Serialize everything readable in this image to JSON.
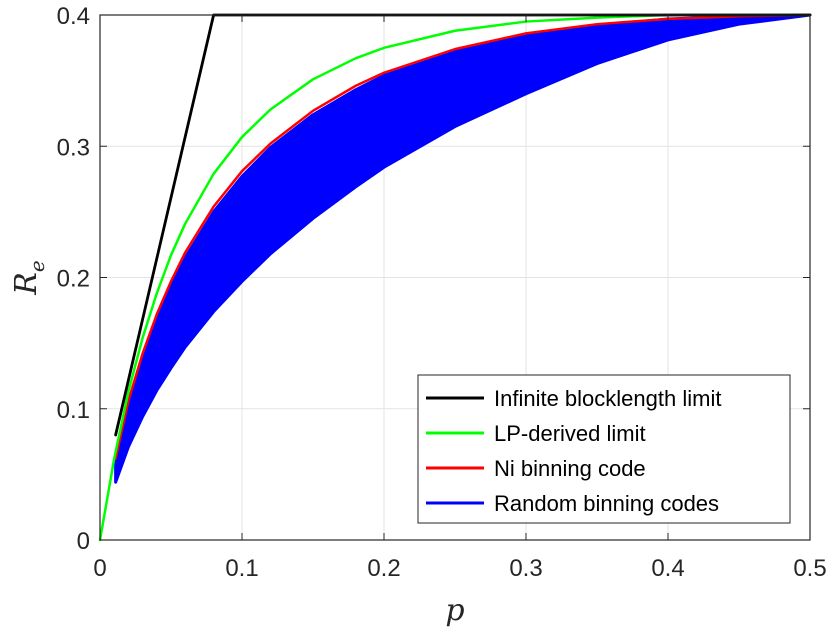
{
  "chart_data": {
    "type": "line",
    "title": "",
    "xlabel": "p",
    "ylabel": {
      "main": "R",
      "sub": "e"
    },
    "xlim": [
      0,
      0.5
    ],
    "ylim": [
      0,
      0.4
    ],
    "x_ticks": [
      0,
      0.1,
      0.2,
      0.3,
      0.4,
      0.5
    ],
    "x_tick_labels": [
      "0",
      "0.1",
      "0.2",
      "0.3",
      "0.4",
      "0.5"
    ],
    "y_ticks": [
      0,
      0.1,
      0.2,
      0.3,
      0.4
    ],
    "y_tick_labels": [
      "0",
      "0.1",
      "0.2",
      "0.3",
      "0.4"
    ],
    "grid": true,
    "legend_position": "bottom-right",
    "series": [
      {
        "name": "Infinite blocklength limit",
        "color": "#000000",
        "style": "line",
        "x": [
          0.011,
          0.08,
          0.5
        ],
        "y": [
          0.08,
          0.4,
          0.4
        ]
      },
      {
        "name": "LP-derived limit",
        "color": "#00ff00",
        "style": "line",
        "x": [
          0,
          0.01,
          0.02,
          0.03,
          0.04,
          0.05,
          0.06,
          0.08,
          0.1,
          0.12,
          0.15,
          0.18,
          0.2,
          0.25,
          0.3,
          0.35,
          0.4,
          0.5
        ],
        "y": [
          0,
          0.062,
          0.113,
          0.154,
          0.188,
          0.217,
          0.241,
          0.279,
          0.307,
          0.328,
          0.351,
          0.367,
          0.375,
          0.388,
          0.395,
          0.398,
          0.4,
          0.4
        ]
      },
      {
        "name": "Ni binning code",
        "color": "#ff0000",
        "style": "line",
        "x": [
          0.011,
          0.02,
          0.03,
          0.04,
          0.05,
          0.06,
          0.08,
          0.1,
          0.12,
          0.15,
          0.18,
          0.2,
          0.25,
          0.3,
          0.35,
          0.4,
          0.45,
          0.5
        ],
        "y": [
          0.062,
          0.106,
          0.142,
          0.172,
          0.197,
          0.219,
          0.254,
          0.281,
          0.302,
          0.327,
          0.346,
          0.356,
          0.374,
          0.386,
          0.393,
          0.397,
          0.399,
          0.4
        ]
      },
      {
        "name": "Random binning codes",
        "color": "#0000ff",
        "style": "band",
        "x": [
          0.011,
          0.02,
          0.03,
          0.04,
          0.05,
          0.06,
          0.08,
          0.1,
          0.12,
          0.15,
          0.18,
          0.2,
          0.25,
          0.3,
          0.35,
          0.4,
          0.45,
          0.5
        ],
        "y_upper": [
          0.06,
          0.103,
          0.138,
          0.168,
          0.193,
          0.215,
          0.25,
          0.277,
          0.299,
          0.324,
          0.343,
          0.354,
          0.372,
          0.385,
          0.392,
          0.397,
          0.399,
          0.4
        ],
        "y_lower": [
          0.044,
          0.071,
          0.094,
          0.114,
          0.131,
          0.147,
          0.174,
          0.197,
          0.218,
          0.245,
          0.269,
          0.284,
          0.315,
          0.34,
          0.363,
          0.381,
          0.393,
          0.4
        ]
      }
    ]
  }
}
